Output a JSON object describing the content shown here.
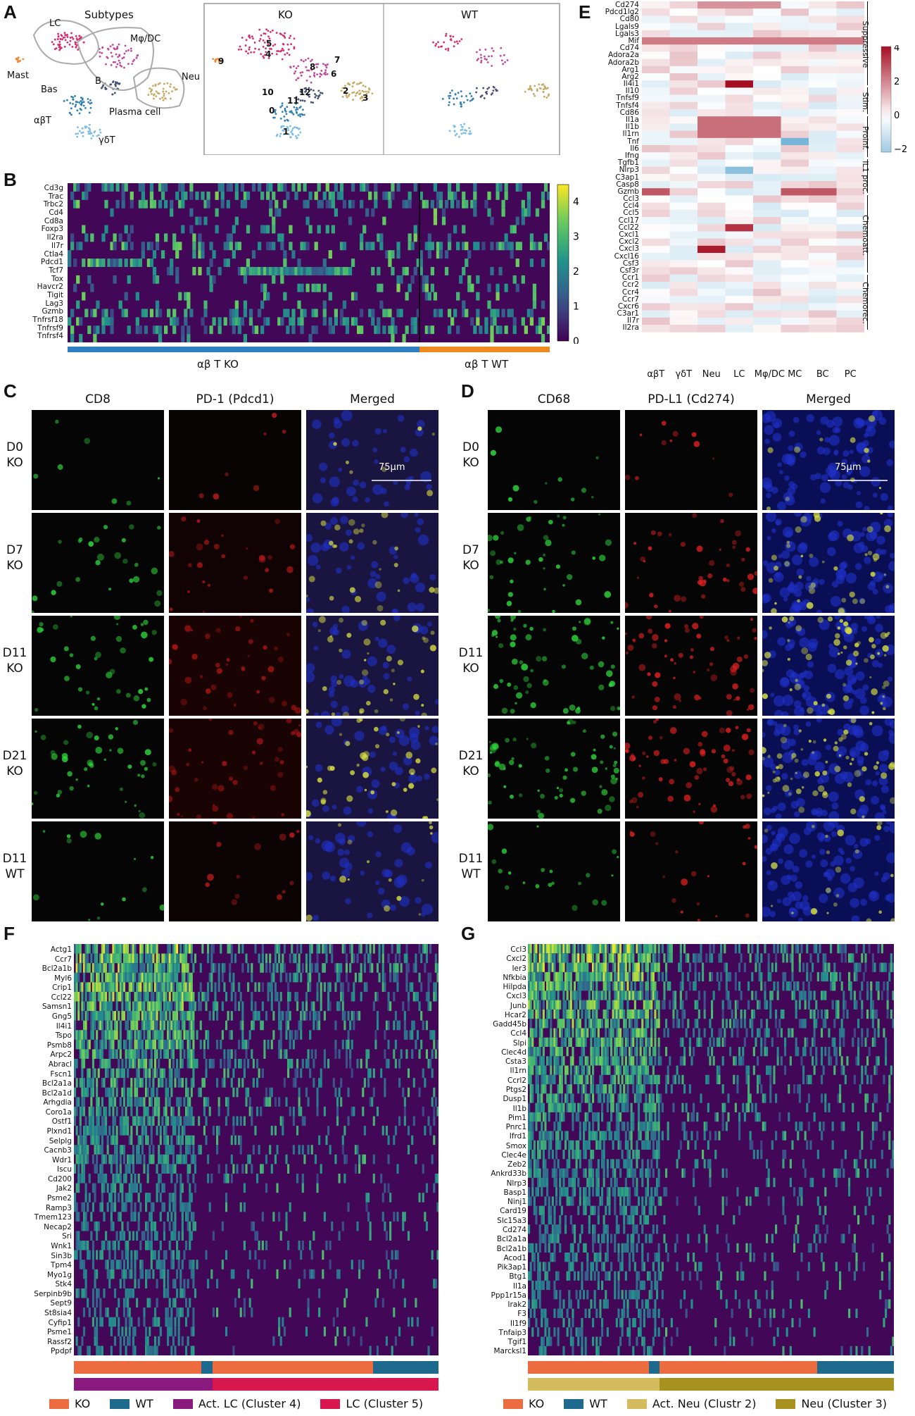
{
  "panels": {
    "A": {
      "label": "A",
      "title_subtypes": "Subtypes",
      "title_ko": "KO",
      "title_wt": "WT",
      "cell_labels": [
        "LC",
        "Mφ/DC",
        "Neu",
        "Mast",
        "Bas",
        "B",
        "Plasma cell",
        "αβT",
        "γδT"
      ],
      "cluster_ids": [
        "0",
        "1",
        "2",
        "3",
        "4",
        "5",
        "6",
        "7",
        "8",
        "9",
        "10",
        "11",
        "12"
      ]
    },
    "B": {
      "label": "B",
      "genes": [
        "Cd3g",
        "Trac",
        "Trbc2",
        "Cd4",
        "Cd8a",
        "Foxp3",
        "Il2ra",
        "Il7r",
        "Ctla4",
        "Pdcd1",
        "Tcf7",
        "Tox",
        "Havcr2",
        "Tigit",
        "Lag3",
        "Gzmb",
        "Tnfrsf18",
        "Tnfrsf9",
        "Tnfrsf4"
      ],
      "group_ko": "αβ T KO",
      "group_wt": "αβ T WT",
      "colorbar_ticks": [
        "0",
        "1",
        "2",
        "3",
        "4"
      ]
    },
    "C": {
      "label": "C",
      "headers": [
        "CD8",
        "PD-1 (Pdcd1)",
        "Merged"
      ],
      "rows": [
        {
          "l1": "D0",
          "l2": "KO"
        },
        {
          "l1": "D7",
          "l2": "KO"
        },
        {
          "l1": "D11",
          "l2": "KO"
        },
        {
          "l1": "D21",
          "l2": "KO"
        },
        {
          "l1": "D11",
          "l2": "WT"
        }
      ],
      "scale": "75μm"
    },
    "D": {
      "label": "D",
      "headers": [
        "CD68",
        "PD-L1 (Cd274)",
        "Merged"
      ],
      "rows": [
        {
          "l1": "D0",
          "l2": "KO"
        },
        {
          "l1": "D7",
          "l2": "KO"
        },
        {
          "l1": "D11",
          "l2": "KO"
        },
        {
          "l1": "D21",
          "l2": "KO"
        },
        {
          "l1": "D11",
          "l2": "WT"
        }
      ],
      "scale": "75μm"
    },
    "E": {
      "label": "E",
      "genes": [
        "Cd274",
        "Pdcd1lg2",
        "Cd80",
        "Lgals9",
        "Lgals3",
        "Mif",
        "Cd74",
        "Adora2a",
        "Adora2b",
        "Arg1",
        "Arg2",
        "Il4i1",
        "Il10",
        "Tnfsf9",
        "Tnfsf4",
        "Cd86",
        "Il1a",
        "Il1b",
        "Il1rn",
        "Tnf",
        "Il6",
        "Ifng",
        "Tgfb1",
        "Nlrp3",
        "C3ap1",
        "Casp8",
        "Gzmb",
        "Ccl3",
        "Ccl4",
        "Ccl5",
        "Ccl17",
        "Ccl22",
        "Cxcl1",
        "Cxcl2",
        "Cxcl3",
        "Cxcl16",
        "Csf3",
        "Csf3r",
        "Ccr1",
        "Ccr2",
        "Ccr4",
        "Ccr7",
        "Cxcr6",
        "C3ar1",
        "Il7r",
        "Il2ra"
      ],
      "columns": [
        "αβT",
        "γδT",
        "Neu",
        "LC",
        "Mφ/DC",
        "MC",
        "BC",
        "PC"
      ],
      "groups": [
        "Suppressive",
        "Stim.",
        "Proinf.",
        "IL1 proc.",
        "Chemoatt.",
        "Chemorec."
      ],
      "colorbar_ticks": [
        "4",
        "2",
        "0",
        "−2"
      ]
    },
    "F": {
      "label": "F",
      "genes": [
        "Actg1",
        "Ccr7",
        "Bcl2a1b",
        "Myl6",
        "Crip1",
        "Ccl22",
        "Samsn1",
        "Gng5",
        "Il4i1",
        "Tspo",
        "Psmb8",
        "Arpc2",
        "Abracl",
        "Fscn1",
        "Bcl2a1a",
        "Bcl2a1d",
        "Arhgdia",
        "Coro1a",
        "Ostf1",
        "Plxnd1",
        "Selplg",
        "Cacnb3",
        "Wdr1",
        "Iscu",
        "Cd200",
        "Jak2",
        "Psme2",
        "Ramp3",
        "Tmem123",
        "Necap2",
        "Sri",
        "Wnk1",
        "Sin3b",
        "Tpm4",
        "Myo1g",
        "Stk4",
        "Serpinb9b",
        "Sept9",
        "St8sia4",
        "Cyfip1",
        "Psme1",
        "Rassf2",
        "Ppdpf"
      ],
      "legend": [
        {
          "label": "KO",
          "color": "#ec6b3f"
        },
        {
          "label": "WT",
          "color": "#1d6a8e"
        },
        {
          "label": "Act. LC (Cluster 4)",
          "color": "#8b1a7f"
        },
        {
          "label": "LC (Cluster 5)",
          "color": "#d8174f"
        }
      ]
    },
    "G": {
      "label": "G",
      "genes": [
        "Ccl3",
        "Cxcl2",
        "Ier3",
        "Nfkbia",
        "Hilpda",
        "Cxcl3",
        "Junb",
        "Hcar2",
        "Gadd45b",
        "Ccl4",
        "Slpi",
        "Clec4d",
        "Csta3",
        "Il1rn",
        "Ccrl2",
        "Ptgs2",
        "Dusp1",
        "Il1b",
        "Pim1",
        "Pnrc1",
        "Ifrd1",
        "Smox",
        "Clec4e",
        "Zeb2",
        "Ankrd33b",
        "Nlrp3",
        "Basp1",
        "Ninj1",
        "Card19",
        "Slc15a3",
        "Cd274",
        "Bcl2a1a",
        "Bcl2a1b",
        "Acod1",
        "Pik3ap1",
        "Btg1",
        "Il1a",
        "Ppp1r15a",
        "Irak2",
        "F3",
        "Il1f9",
        "Tnfaip3",
        "Tgif1",
        "Marcksl1"
      ],
      "legend": [
        {
          "label": "KO",
          "color": "#ec6b3f"
        },
        {
          "label": "WT",
          "color": "#1d6a8e"
        },
        {
          "label": "Act. Neu (Clustr 2)",
          "color": "#d4bb5d"
        },
        {
          "label": "Neu (Cluster 3)",
          "color": "#a8921f"
        }
      ]
    }
  }
}
